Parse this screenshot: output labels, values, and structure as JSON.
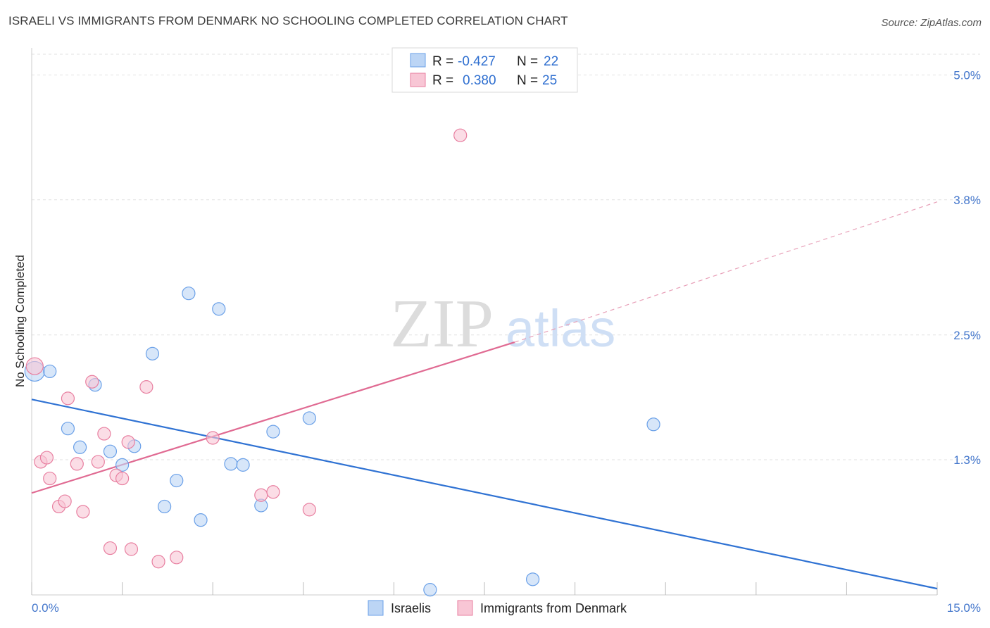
{
  "title": "ISRAELI VS IMMIGRANTS FROM DENMARK NO SCHOOLING COMPLETED CORRELATION CHART",
  "source": "Source: ZipAtlas.com",
  "watermark": {
    "zip": "ZIP",
    "atlas": "atlas"
  },
  "legend": {
    "rows": [
      {
        "r_label": "R =",
        "r_value": "-0.427",
        "n_label": "N =",
        "n_value": "22",
        "color": "#a9c8f2"
      },
      {
        "r_label": "R =",
        "r_value": "0.380",
        "n_label": "N =",
        "n_value": "25",
        "color": "#f6b9cc"
      }
    ]
  },
  "bottom_legend": [
    "Israelis",
    "Immigrants from Denmark"
  ],
  "chart_data": {
    "type": "scatter",
    "xlabel": "",
    "ylabel": "No Schooling Completed",
    "xlim": [
      0,
      15
    ],
    "ylim": [
      0,
      5.2
    ],
    "x_tick_labels": [
      "0.0%",
      "15.0%"
    ],
    "y_ticks": [
      1.3,
      2.5,
      3.8,
      5.0
    ],
    "y_tick_labels": [
      "1.3%",
      "2.5%",
      "3.8%",
      "5.0%"
    ],
    "grid": true,
    "series": [
      {
        "name": "Israelis",
        "color": "#6aa0e8",
        "fill": "#bcd5f5",
        "points": [
          [
            0.05,
            2.15,
            14
          ],
          [
            0.3,
            2.15,
            9
          ],
          [
            1.05,
            2.02,
            9
          ],
          [
            0.6,
            1.6,
            9
          ],
          [
            0.8,
            1.42,
            9
          ],
          [
            1.3,
            1.38,
            9
          ],
          [
            1.7,
            1.43,
            9
          ],
          [
            1.5,
            1.25,
            9
          ],
          [
            2.0,
            2.32,
            9
          ],
          [
            2.6,
            2.9,
            9
          ],
          [
            3.1,
            2.75,
            9
          ],
          [
            2.4,
            1.1,
            9
          ],
          [
            2.2,
            0.85,
            9
          ],
          [
            2.8,
            0.72,
            9
          ],
          [
            3.3,
            1.26,
            9
          ],
          [
            3.5,
            1.25,
            9
          ],
          [
            4.0,
            1.57,
            9
          ],
          [
            3.8,
            0.86,
            9
          ],
          [
            4.6,
            1.7,
            9
          ],
          [
            6.6,
            0.05,
            9
          ],
          [
            8.3,
            0.15,
            9
          ],
          [
            10.3,
            1.64,
            9
          ]
        ],
        "trend": {
          "x": [
            0,
            15
          ],
          "y": [
            1.88,
            0.06
          ]
        }
      },
      {
        "name": "Immigrants from Denmark",
        "color": "#e87fa0",
        "fill": "#f8c6d5",
        "points": [
          [
            0.05,
            2.2,
            12
          ],
          [
            0.15,
            1.28,
            9
          ],
          [
            0.25,
            1.32,
            9
          ],
          [
            0.3,
            1.12,
            9
          ],
          [
            0.45,
            0.85,
            9
          ],
          [
            0.55,
            0.9,
            9
          ],
          [
            0.6,
            1.89,
            9
          ],
          [
            0.75,
            1.26,
            9
          ],
          [
            0.85,
            0.8,
            9
          ],
          [
            1.0,
            2.05,
            9
          ],
          [
            1.1,
            1.28,
            9
          ],
          [
            1.2,
            1.55,
            9
          ],
          [
            1.3,
            0.45,
            9
          ],
          [
            1.4,
            1.15,
            9
          ],
          [
            1.5,
            1.12,
            9
          ],
          [
            1.6,
            1.47,
            9
          ],
          [
            1.65,
            0.44,
            9
          ],
          [
            1.9,
            2.0,
            9
          ],
          [
            2.1,
            0.32,
            9
          ],
          [
            2.4,
            0.36,
            9
          ],
          [
            3.0,
            1.51,
            9
          ],
          [
            3.8,
            0.96,
            9
          ],
          [
            4.0,
            0.99,
            9
          ],
          [
            4.6,
            0.82,
            9
          ],
          [
            7.1,
            4.42,
            9
          ]
        ],
        "trend": {
          "x": [
            0,
            8
          ],
          "y": [
            0.98,
            2.43
          ]
        },
        "trend_extension": {
          "x": [
            8,
            15
          ],
          "y": [
            2.43,
            3.78
          ]
        }
      }
    ]
  }
}
